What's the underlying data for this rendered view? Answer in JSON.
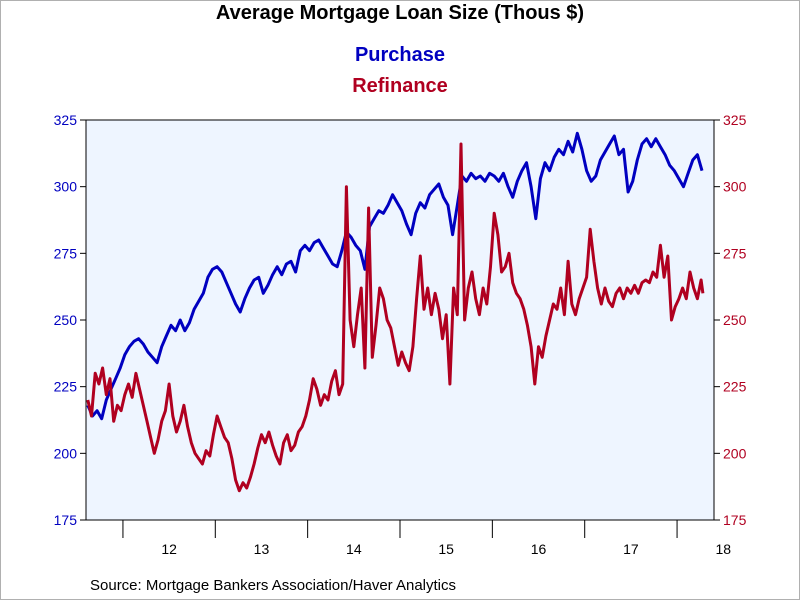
{
  "chart_data": {
    "type": "line",
    "title": "Average Mortgage Loan Size (Thous $)",
    "source": "Source:  Mortgage Bankers Association/Haver Analytics",
    "x_ticks": [
      "12",
      "13",
      "14",
      "15",
      "16",
      "17",
      "18"
    ],
    "x_range": [
      2011.6,
      2018.4
    ],
    "y_range": [
      175,
      325
    ],
    "y_ticks": [
      175,
      200,
      225,
      250,
      275,
      300,
      325
    ],
    "grid": false,
    "legend": "top-center",
    "colors": {
      "purchase": "#0000c0",
      "refinance": "#b00020",
      "plot_bg": "#eef5ff"
    },
    "series": [
      {
        "name": "Purchase",
        "axis": "left",
        "color": "#0000c0",
        "points": [
          [
            2011.62,
            218
          ],
          [
            2011.67,
            214
          ],
          [
            2011.72,
            216
          ],
          [
            2011.77,
            213
          ],
          [
            2011.82,
            220
          ],
          [
            2011.87,
            224
          ],
          [
            2011.92,
            228
          ],
          [
            2011.97,
            232
          ],
          [
            2012.02,
            237
          ],
          [
            2012.07,
            240
          ],
          [
            2012.12,
            242
          ],
          [
            2012.17,
            243
          ],
          [
            2012.22,
            241
          ],
          [
            2012.27,
            238
          ],
          [
            2012.32,
            236
          ],
          [
            2012.37,
            234
          ],
          [
            2012.42,
            240
          ],
          [
            2012.47,
            244
          ],
          [
            2012.52,
            248
          ],
          [
            2012.57,
            246
          ],
          [
            2012.62,
            250
          ],
          [
            2012.67,
            246
          ],
          [
            2012.72,
            249
          ],
          [
            2012.77,
            254
          ],
          [
            2012.82,
            257
          ],
          [
            2012.87,
            260
          ],
          [
            2012.92,
            266
          ],
          [
            2012.97,
            269
          ],
          [
            2013.02,
            270
          ],
          [
            2013.07,
            268
          ],
          [
            2013.12,
            264
          ],
          [
            2013.17,
            260
          ],
          [
            2013.22,
            256
          ],
          [
            2013.27,
            253
          ],
          [
            2013.32,
            258
          ],
          [
            2013.37,
            262
          ],
          [
            2013.42,
            265
          ],
          [
            2013.47,
            266
          ],
          [
            2013.52,
            260
          ],
          [
            2013.57,
            263
          ],
          [
            2013.62,
            267
          ],
          [
            2013.67,
            270
          ],
          [
            2013.72,
            267
          ],
          [
            2013.77,
            271
          ],
          [
            2013.82,
            272
          ],
          [
            2013.87,
            268
          ],
          [
            2013.92,
            276
          ],
          [
            2013.97,
            278
          ],
          [
            2014.02,
            276
          ],
          [
            2014.07,
            279
          ],
          [
            2014.12,
            280
          ],
          [
            2014.17,
            277
          ],
          [
            2014.22,
            274
          ],
          [
            2014.27,
            271
          ],
          [
            2014.32,
            270
          ],
          [
            2014.37,
            276
          ],
          [
            2014.42,
            283
          ],
          [
            2014.47,
            281
          ],
          [
            2014.52,
            278
          ],
          [
            2014.57,
            276
          ],
          [
            2014.62,
            269
          ],
          [
            2014.67,
            285
          ],
          [
            2014.72,
            288
          ],
          [
            2014.77,
            291
          ],
          [
            2014.82,
            290
          ],
          [
            2014.87,
            293
          ],
          [
            2014.92,
            297
          ],
          [
            2014.97,
            294
          ],
          [
            2015.02,
            291
          ],
          [
            2015.07,
            286
          ],
          [
            2015.12,
            282
          ],
          [
            2015.17,
            290
          ],
          [
            2015.22,
            294
          ],
          [
            2015.27,
            292
          ],
          [
            2015.32,
            297
          ],
          [
            2015.37,
            299
          ],
          [
            2015.42,
            301
          ],
          [
            2015.47,
            296
          ],
          [
            2015.52,
            293
          ],
          [
            2015.57,
            282
          ],
          [
            2015.62,
            293
          ],
          [
            2015.67,
            304
          ],
          [
            2015.72,
            302
          ],
          [
            2015.77,
            305
          ],
          [
            2015.82,
            303
          ],
          [
            2015.87,
            304
          ],
          [
            2015.92,
            302
          ],
          [
            2015.97,
            305
          ],
          [
            2016.02,
            304
          ],
          [
            2016.07,
            302
          ],
          [
            2016.12,
            305
          ],
          [
            2016.17,
            300
          ],
          [
            2016.22,
            296
          ],
          [
            2016.27,
            302
          ],
          [
            2016.32,
            306
          ],
          [
            2016.37,
            309
          ],
          [
            2016.42,
            300
          ],
          [
            2016.47,
            288
          ],
          [
            2016.52,
            303
          ],
          [
            2016.57,
            309
          ],
          [
            2016.62,
            306
          ],
          [
            2016.67,
            311
          ],
          [
            2016.72,
            314
          ],
          [
            2016.77,
            312
          ],
          [
            2016.82,
            317
          ],
          [
            2016.87,
            313
          ],
          [
            2016.92,
            320
          ],
          [
            2016.97,
            314
          ],
          [
            2017.02,
            306
          ],
          [
            2017.07,
            302
          ],
          [
            2017.12,
            304
          ],
          [
            2017.17,
            310
          ],
          [
            2017.22,
            313
          ],
          [
            2017.27,
            316
          ],
          [
            2017.32,
            319
          ],
          [
            2017.37,
            312
          ],
          [
            2017.42,
            314
          ],
          [
            2017.47,
            298
          ],
          [
            2017.52,
            302
          ],
          [
            2017.57,
            310
          ],
          [
            2017.62,
            316
          ],
          [
            2017.67,
            318
          ],
          [
            2017.72,
            315
          ],
          [
            2017.77,
            318
          ],
          [
            2017.82,
            315
          ],
          [
            2017.87,
            312
          ],
          [
            2017.92,
            308
          ],
          [
            2017.97,
            306
          ],
          [
            2018.02,
            303
          ],
          [
            2018.07,
            300
          ],
          [
            2018.12,
            305
          ],
          [
            2018.17,
            310
          ],
          [
            2018.22,
            312
          ],
          [
            2018.27,
            306
          ]
        ]
      },
      {
        "name": "Refinance",
        "axis": "right",
        "color": "#b00020",
        "points": [
          [
            2011.62,
            220
          ],
          [
            2011.66,
            214
          ],
          [
            2011.7,
            230
          ],
          [
            2011.74,
            226
          ],
          [
            2011.78,
            232
          ],
          [
            2011.82,
            222
          ],
          [
            2011.86,
            228
          ],
          [
            2011.9,
            212
          ],
          [
            2011.94,
            218
          ],
          [
            2011.98,
            216
          ],
          [
            2012.02,
            222
          ],
          [
            2012.06,
            226
          ],
          [
            2012.1,
            221
          ],
          [
            2012.14,
            230
          ],
          [
            2012.18,
            224
          ],
          [
            2012.22,
            218
          ],
          [
            2012.26,
            212
          ],
          [
            2012.3,
            206
          ],
          [
            2012.34,
            200
          ],
          [
            2012.38,
            205
          ],
          [
            2012.42,
            212
          ],
          [
            2012.46,
            216
          ],
          [
            2012.5,
            226
          ],
          [
            2012.54,
            214
          ],
          [
            2012.58,
            208
          ],
          [
            2012.62,
            212
          ],
          [
            2012.66,
            218
          ],
          [
            2012.7,
            210
          ],
          [
            2012.74,
            204
          ],
          [
            2012.78,
            200
          ],
          [
            2012.82,
            198
          ],
          [
            2012.86,
            196
          ],
          [
            2012.9,
            201
          ],
          [
            2012.94,
            199
          ],
          [
            2012.98,
            207
          ],
          [
            2013.02,
            214
          ],
          [
            2013.06,
            210
          ],
          [
            2013.1,
            206
          ],
          [
            2013.14,
            204
          ],
          [
            2013.18,
            198
          ],
          [
            2013.22,
            190
          ],
          [
            2013.26,
            186
          ],
          [
            2013.3,
            189
          ],
          [
            2013.34,
            187
          ],
          [
            2013.38,
            191
          ],
          [
            2013.42,
            196
          ],
          [
            2013.46,
            202
          ],
          [
            2013.5,
            207
          ],
          [
            2013.54,
            204
          ],
          [
            2013.58,
            208
          ],
          [
            2013.62,
            203
          ],
          [
            2013.66,
            199
          ],
          [
            2013.7,
            196
          ],
          [
            2013.74,
            204
          ],
          [
            2013.78,
            207
          ],
          [
            2013.82,
            201
          ],
          [
            2013.86,
            203
          ],
          [
            2013.9,
            208
          ],
          [
            2013.94,
            210
          ],
          [
            2013.98,
            214
          ],
          [
            2014.02,
            220
          ],
          [
            2014.06,
            228
          ],
          [
            2014.1,
            224
          ],
          [
            2014.14,
            218
          ],
          [
            2014.18,
            222
          ],
          [
            2014.22,
            220
          ],
          [
            2014.26,
            227
          ],
          [
            2014.3,
            231
          ],
          [
            2014.34,
            222
          ],
          [
            2014.38,
            226
          ],
          [
            2014.42,
            300
          ],
          [
            2014.46,
            250
          ],
          [
            2014.5,
            240
          ],
          [
            2014.54,
            252
          ],
          [
            2014.58,
            262
          ],
          [
            2014.62,
            232
          ],
          [
            2014.66,
            292
          ],
          [
            2014.7,
            236
          ],
          [
            2014.74,
            248
          ],
          [
            2014.78,
            262
          ],
          [
            2014.82,
            258
          ],
          [
            2014.86,
            250
          ],
          [
            2014.9,
            247
          ],
          [
            2014.94,
            240
          ],
          [
            2014.98,
            233
          ],
          [
            2015.02,
            238
          ],
          [
            2015.06,
            234
          ],
          [
            2015.1,
            231
          ],
          [
            2015.14,
            240
          ],
          [
            2015.18,
            258
          ],
          [
            2015.22,
            274
          ],
          [
            2015.26,
            254
          ],
          [
            2015.3,
            262
          ],
          [
            2015.34,
            252
          ],
          [
            2015.38,
            260
          ],
          [
            2015.42,
            254
          ],
          [
            2015.46,
            243
          ],
          [
            2015.5,
            252
          ],
          [
            2015.54,
            226
          ],
          [
            2015.58,
            262
          ],
          [
            2015.62,
            252
          ],
          [
            2015.66,
            316
          ],
          [
            2015.7,
            250
          ],
          [
            2015.74,
            262
          ],
          [
            2015.78,
            268
          ],
          [
            2015.82,
            258
          ],
          [
            2015.86,
            252
          ],
          [
            2015.9,
            262
          ],
          [
            2015.94,
            256
          ],
          [
            2015.98,
            270
          ],
          [
            2016.02,
            290
          ],
          [
            2016.06,
            282
          ],
          [
            2016.1,
            268
          ],
          [
            2016.14,
            270
          ],
          [
            2016.18,
            275
          ],
          [
            2016.22,
            264
          ],
          [
            2016.26,
            260
          ],
          [
            2016.3,
            258
          ],
          [
            2016.34,
            254
          ],
          [
            2016.38,
            248
          ],
          [
            2016.42,
            240
          ],
          [
            2016.46,
            226
          ],
          [
            2016.5,
            240
          ],
          [
            2016.54,
            236
          ],
          [
            2016.58,
            244
          ],
          [
            2016.62,
            250
          ],
          [
            2016.66,
            256
          ],
          [
            2016.7,
            254
          ],
          [
            2016.74,
            262
          ],
          [
            2016.78,
            252
          ],
          [
            2016.82,
            272
          ],
          [
            2016.86,
            256
          ],
          [
            2016.9,
            252
          ],
          [
            2016.94,
            258
          ],
          [
            2016.98,
            262
          ],
          [
            2017.02,
            266
          ],
          [
            2017.06,
            284
          ],
          [
            2017.1,
            272
          ],
          [
            2017.14,
            262
          ],
          [
            2017.18,
            256
          ],
          [
            2017.22,
            262
          ],
          [
            2017.26,
            257
          ],
          [
            2017.3,
            255
          ],
          [
            2017.34,
            260
          ],
          [
            2017.38,
            262
          ],
          [
            2017.42,
            258
          ],
          [
            2017.46,
            262
          ],
          [
            2017.5,
            260
          ],
          [
            2017.54,
            263
          ],
          [
            2017.58,
            260
          ],
          [
            2017.62,
            264
          ],
          [
            2017.66,
            265
          ],
          [
            2017.7,
            264
          ],
          [
            2017.74,
            268
          ],
          [
            2017.78,
            266
          ],
          [
            2017.82,
            278
          ],
          [
            2017.86,
            266
          ],
          [
            2017.9,
            274
          ],
          [
            2017.94,
            250
          ],
          [
            2017.98,
            255
          ],
          [
            2018.02,
            258
          ],
          [
            2018.06,
            262
          ],
          [
            2018.1,
            258
          ],
          [
            2018.14,
            268
          ],
          [
            2018.18,
            262
          ],
          [
            2018.22,
            258
          ],
          [
            2018.26,
            265
          ],
          [
            2018.28,
            260
          ]
        ]
      }
    ]
  }
}
